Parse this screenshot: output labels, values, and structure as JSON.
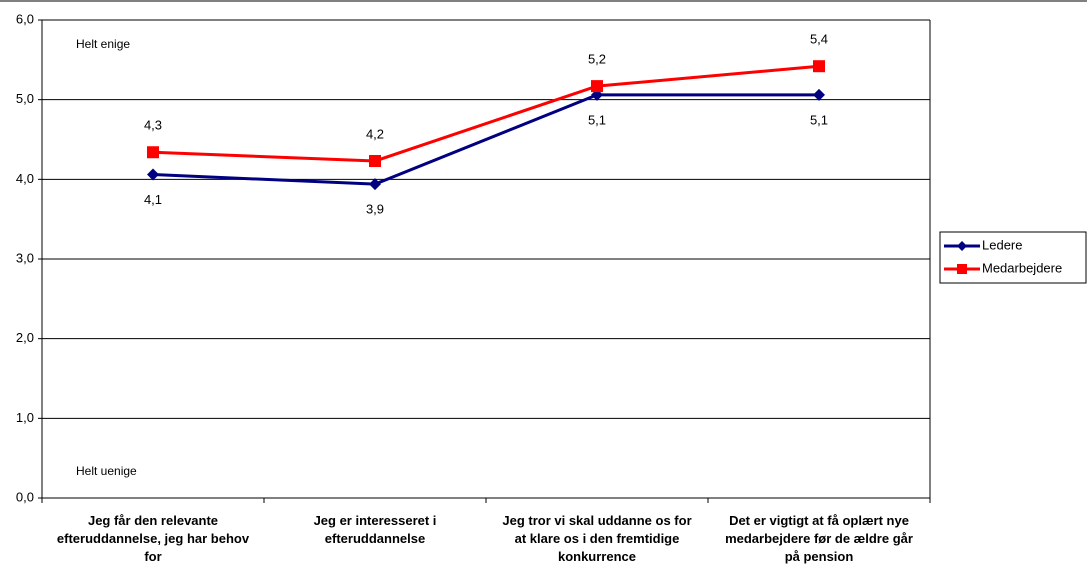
{
  "chart_data": {
    "type": "line",
    "categories": [
      "Jeg får den relevante efteruddannelse, jeg har behov for",
      "Jeg er interesseret i efteruddannelse",
      "Jeg tror vi skal uddanne os for at klare os i den fremtidige konkurrence",
      "Det er vigtigt at få oplært nye medarbejdere før de ældre går på pension"
    ],
    "series": [
      {
        "name": "Ledere",
        "color": "#000080",
        "marker": "diamond",
        "values": [
          4.06,
          3.94,
          5.06,
          5.06
        ],
        "value_labels": [
          "4,1",
          "3,9",
          "5,1",
          "5,1"
        ]
      },
      {
        "name": "Medarbejdere",
        "color": "#ff0000",
        "marker": "square",
        "values": [
          4.34,
          4.23,
          5.17,
          5.42
        ],
        "value_labels": [
          "4,3",
          "4,2",
          "5,2",
          "5,4"
        ]
      }
    ],
    "annotations": [
      "Helt enige",
      "Helt uenige"
    ],
    "ylim": [
      0,
      6
    ],
    "yticks": [
      {
        "value": 0,
        "label": "0,0"
      },
      {
        "value": 1,
        "label": "1,0"
      },
      {
        "value": 2,
        "label": "2,0"
      },
      {
        "value": 3,
        "label": "3,0"
      },
      {
        "value": 4,
        "label": "4,0"
      },
      {
        "value": 5,
        "label": "5,0"
      },
      {
        "value": 6,
        "label": "6,0"
      }
    ],
    "grid": true,
    "legend": "right"
  }
}
